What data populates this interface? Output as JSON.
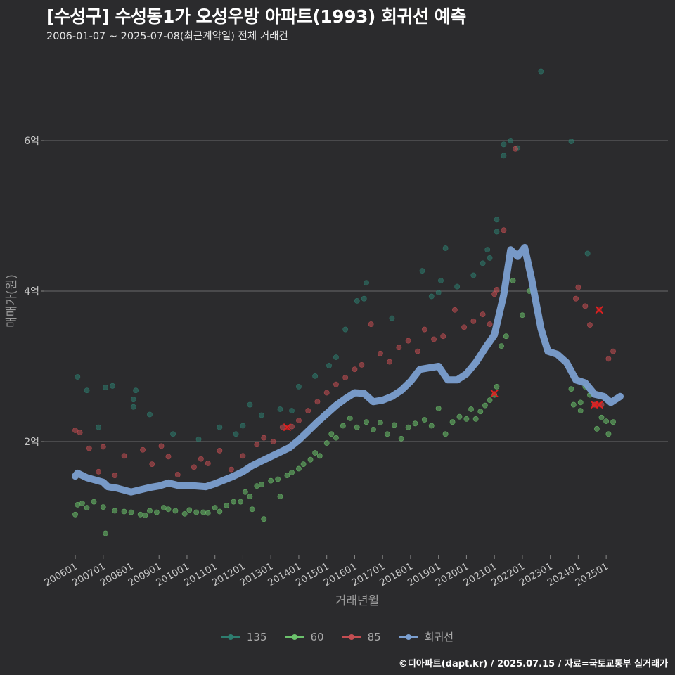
{
  "title": "[수성구] 수성동1가 오성우방 아파트(1993) 회귀선 예측",
  "subtitle": "2006-01-07 ~ 2025-07-08(최근계약일) 전체 거래건",
  "footer": "©디아파트(dapt.kr) / 2025.07.15 / 자료=국토교통부 실거래가",
  "chart_data": {
    "type": "scatter",
    "xlabel": "거래년월",
    "ylabel": "매매가(원)",
    "x_range": [
      "2006-01",
      "2025-07"
    ],
    "ylim": [
      0.8,
      7.0
    ],
    "y_unit": "억",
    "yticks": [
      2,
      4,
      6
    ],
    "ytick_labels": [
      "2억",
      "4억",
      "6억"
    ],
    "xtick_labels": [
      "200601",
      "200701",
      "200801",
      "200901",
      "201001",
      "201101",
      "201201",
      "201301",
      "201401",
      "201501",
      "201601",
      "201701",
      "201801",
      "201901",
      "202001",
      "202101",
      "202201",
      "202301",
      "202401",
      "202501"
    ],
    "grid": "horizontal",
    "legend_position": "bottom",
    "series": [
      {
        "name": "135",
        "color": "#2e7d6f",
        "points": [
          [
            "2006-02",
            2.86
          ],
          [
            "2006-06",
            2.68
          ],
          [
            "2006-11",
            2.19
          ],
          [
            "2007-02",
            2.72
          ],
          [
            "2007-05",
            2.74
          ],
          [
            "2008-02",
            2.56
          ],
          [
            "2008-02",
            2.46
          ],
          [
            "2008-03",
            2.68
          ],
          [
            "2008-09",
            2.36
          ],
          [
            "2009-07",
            2.1
          ],
          [
            "2010-06",
            2.03
          ],
          [
            "2011-03",
            2.19
          ],
          [
            "2011-10",
            2.1
          ],
          [
            "2012-01",
            2.21
          ],
          [
            "2012-04",
            2.49
          ],
          [
            "2012-09",
            2.35
          ],
          [
            "2013-05",
            2.43
          ],
          [
            "2013-10",
            2.41
          ],
          [
            "2014-01",
            2.73
          ],
          [
            "2014-08",
            2.87
          ],
          [
            "2015-02",
            3.01
          ],
          [
            "2015-05",
            3.12
          ],
          [
            "2015-09",
            3.49
          ],
          [
            "2016-02",
            3.87
          ],
          [
            "2016-05",
            3.9
          ],
          [
            "2016-06",
            4.11
          ],
          [
            "2017-05",
            3.64
          ],
          [
            "2018-06",
            4.27
          ],
          [
            "2018-10",
            3.93
          ],
          [
            "2019-01",
            3.98
          ],
          [
            "2019-02",
            4.14
          ],
          [
            "2019-04",
            4.57
          ],
          [
            "2019-09",
            4.06
          ],
          [
            "2020-04",
            4.21
          ],
          [
            "2020-08",
            4.37
          ],
          [
            "2020-10",
            4.55
          ],
          [
            "2020-11",
            4.44
          ],
          [
            "2021-02",
            4.95
          ],
          [
            "2021-02",
            4.79
          ],
          [
            "2021-05",
            5.8
          ],
          [
            "2021-05",
            5.95
          ],
          [
            "2021-08",
            6.0
          ],
          [
            "2021-11",
            5.9
          ],
          [
            "2022-09",
            6.92
          ],
          [
            "2023-10",
            5.99
          ],
          [
            "2024-05",
            4.5
          ]
        ]
      },
      {
        "name": "60",
        "color": "#6cc26c",
        "points": [
          [
            "2006-01",
            1.03
          ],
          [
            "2006-02",
            1.16
          ],
          [
            "2006-04",
            1.18
          ],
          [
            "2006-06",
            1.12
          ],
          [
            "2006-09",
            1.2
          ],
          [
            "2007-01",
            1.13
          ],
          [
            "2007-02",
            0.78
          ],
          [
            "2007-06",
            1.08
          ],
          [
            "2007-10",
            1.07
          ],
          [
            "2008-01",
            1.06
          ],
          [
            "2008-05",
            1.03
          ],
          [
            "2008-07",
            1.02
          ],
          [
            "2008-09",
            1.08
          ],
          [
            "2008-12",
            1.06
          ],
          [
            "2009-03",
            1.12
          ],
          [
            "2009-05",
            1.1
          ],
          [
            "2009-08",
            1.08
          ],
          [
            "2009-12",
            1.04
          ],
          [
            "2010-02",
            1.09
          ],
          [
            "2010-05",
            1.06
          ],
          [
            "2010-08",
            1.06
          ],
          [
            "2010-10",
            1.05
          ],
          [
            "2011-01",
            1.12
          ],
          [
            "2011-03",
            1.07
          ],
          [
            "2011-06",
            1.15
          ],
          [
            "2011-09",
            1.2
          ],
          [
            "2011-12",
            1.2
          ],
          [
            "2012-02",
            1.33
          ],
          [
            "2012-04",
            1.27
          ],
          [
            "2012-05",
            1.1
          ],
          [
            "2012-07",
            1.41
          ],
          [
            "2012-09",
            1.43
          ],
          [
            "2012-10",
            0.97
          ],
          [
            "2013-01",
            1.48
          ],
          [
            "2013-04",
            1.5
          ],
          [
            "2013-05",
            1.27
          ],
          [
            "2013-08",
            1.55
          ],
          [
            "2013-10",
            1.59
          ],
          [
            "2014-01",
            1.64
          ],
          [
            "2014-03",
            1.7
          ],
          [
            "2014-06",
            1.76
          ],
          [
            "2014-08",
            1.85
          ],
          [
            "2014-10",
            1.81
          ],
          [
            "2015-01",
            1.98
          ],
          [
            "2015-03",
            2.1
          ],
          [
            "2015-05",
            2.05
          ],
          [
            "2015-08",
            2.21
          ],
          [
            "2015-11",
            2.31
          ],
          [
            "2016-02",
            2.19
          ],
          [
            "2016-06",
            2.26
          ],
          [
            "2016-09",
            2.16
          ],
          [
            "2016-12",
            2.25
          ],
          [
            "2017-03",
            2.1
          ],
          [
            "2017-06",
            2.22
          ],
          [
            "2017-09",
            2.04
          ],
          [
            "2017-12",
            2.19
          ],
          [
            "2018-03",
            2.24
          ],
          [
            "2018-07",
            2.29
          ],
          [
            "2018-10",
            2.21
          ],
          [
            "2019-01",
            2.44
          ],
          [
            "2019-04",
            2.1
          ],
          [
            "2019-07",
            2.26
          ],
          [
            "2019-10",
            2.33
          ],
          [
            "2020-01",
            2.3
          ],
          [
            "2020-03",
            2.43
          ],
          [
            "2020-05",
            2.3
          ],
          [
            "2020-07",
            2.4
          ],
          [
            "2020-09",
            2.48
          ],
          [
            "2020-11",
            2.55
          ],
          [
            "2021-01",
            2.62
          ],
          [
            "2021-02",
            2.73
          ],
          [
            "2021-04",
            3.27
          ],
          [
            "2021-06",
            3.4
          ],
          [
            "2021-09",
            4.14
          ],
          [
            "2022-01",
            3.68
          ],
          [
            "2022-04",
            4.0
          ],
          [
            "2023-10",
            2.7
          ],
          [
            "2023-11",
            2.49
          ],
          [
            "2024-02",
            2.41
          ],
          [
            "2024-02",
            2.52
          ],
          [
            "2024-04",
            2.73
          ],
          [
            "2024-06",
            2.62
          ],
          [
            "2024-09",
            2.17
          ],
          [
            "2024-11",
            2.32
          ],
          [
            "2025-01",
            2.27
          ],
          [
            "2025-02",
            2.1
          ],
          [
            "2025-04",
            2.26
          ]
        ]
      },
      {
        "name": "85",
        "color": "#c44e52",
        "points": [
          [
            "2006-01",
            2.15
          ],
          [
            "2006-03",
            2.12
          ],
          [
            "2006-07",
            1.91
          ],
          [
            "2006-11",
            1.6
          ],
          [
            "2007-01",
            1.93
          ],
          [
            "2007-06",
            1.55
          ],
          [
            "2007-10",
            1.81
          ],
          [
            "2008-06",
            1.89
          ],
          [
            "2008-10",
            1.7
          ],
          [
            "2009-02",
            1.94
          ],
          [
            "2009-05",
            1.8
          ],
          [
            "2009-09",
            1.56
          ],
          [
            "2010-04",
            1.66
          ],
          [
            "2010-07",
            1.77
          ],
          [
            "2010-10",
            1.71
          ],
          [
            "2011-03",
            1.88
          ],
          [
            "2011-08",
            1.63
          ],
          [
            "2012-01",
            1.81
          ],
          [
            "2012-04",
            1.66
          ],
          [
            "2012-07",
            1.96
          ],
          [
            "2012-10",
            2.05
          ],
          [
            "2013-02",
            2.0
          ],
          [
            "2013-06",
            2.19
          ],
          [
            "2013-10",
            2.2
          ],
          [
            "2014-01",
            2.28
          ],
          [
            "2014-05",
            2.41
          ],
          [
            "2014-09",
            2.53
          ],
          [
            "2015-01",
            2.65
          ],
          [
            "2015-05",
            2.76
          ],
          [
            "2015-09",
            2.85
          ],
          [
            "2016-01",
            2.96
          ],
          [
            "2016-04",
            3.02
          ],
          [
            "2016-08",
            3.56
          ],
          [
            "2016-12",
            3.17
          ],
          [
            "2017-04",
            3.06
          ],
          [
            "2017-08",
            3.25
          ],
          [
            "2017-12",
            3.34
          ],
          [
            "2018-04",
            3.2
          ],
          [
            "2018-07",
            3.49
          ],
          [
            "2018-11",
            3.36
          ],
          [
            "2019-03",
            3.4
          ],
          [
            "2019-08",
            3.75
          ],
          [
            "2019-12",
            3.52
          ],
          [
            "2020-04",
            3.6
          ],
          [
            "2020-08",
            3.69
          ],
          [
            "2020-11",
            3.56
          ],
          [
            "2021-01",
            3.96
          ],
          [
            "2021-02",
            4.02
          ],
          [
            "2021-05",
            4.81
          ],
          [
            "2021-10",
            5.89
          ],
          [
            "2024-01",
            4.05
          ],
          [
            "2024-04",
            3.8
          ],
          [
            "2024-06",
            3.55
          ],
          [
            "2024-08",
            2.49
          ],
          [
            "2024-11",
            2.49
          ],
          [
            "2025-04",
            3.2
          ],
          [
            "2025-02",
            3.1
          ],
          [
            "2023-12",
            3.9
          ]
        ]
      }
    ],
    "flagged_points_color": "#e02020",
    "flagged_points": [
      [
        "2013-08",
        2.19
      ],
      [
        "2021-01",
        2.64
      ],
      [
        "2024-08",
        2.49
      ],
      [
        "2024-10",
        2.49
      ],
      [
        "2024-10",
        3.75
      ]
    ],
    "regression": {
      "name": "회귀선",
      "color": "#7b9fd0",
      "points": [
        [
          "2006-01",
          1.54
        ],
        [
          "2006-02",
          1.58
        ],
        [
          "2006-06",
          1.52
        ],
        [
          "2007-01",
          1.46
        ],
        [
          "2007-03",
          1.4
        ],
        [
          "2007-07",
          1.38
        ],
        [
          "2008-01",
          1.33
        ],
        [
          "2008-05",
          1.36
        ],
        [
          "2008-09",
          1.39
        ],
        [
          "2009-01",
          1.41
        ],
        [
          "2009-05",
          1.45
        ],
        [
          "2009-09",
          1.42
        ],
        [
          "2010-01",
          1.42
        ],
        [
          "2010-05",
          1.41
        ],
        [
          "2010-09",
          1.4
        ],
        [
          "2011-01",
          1.44
        ],
        [
          "2011-05",
          1.49
        ],
        [
          "2011-09",
          1.54
        ],
        [
          "2012-01",
          1.6
        ],
        [
          "2012-05",
          1.68
        ],
        [
          "2012-09",
          1.74
        ],
        [
          "2013-01",
          1.8
        ],
        [
          "2013-05",
          1.86
        ],
        [
          "2013-09",
          1.92
        ],
        [
          "2014-01",
          2.02
        ],
        [
          "2014-05",
          2.14
        ],
        [
          "2014-09",
          2.26
        ],
        [
          "2015-01",
          2.37
        ],
        [
          "2015-05",
          2.48
        ],
        [
          "2015-09",
          2.57
        ],
        [
          "2016-01",
          2.65
        ],
        [
          "2016-05",
          2.64
        ],
        [
          "2016-09",
          2.53
        ],
        [
          "2017-01",
          2.55
        ],
        [
          "2017-05",
          2.6
        ],
        [
          "2017-09",
          2.68
        ],
        [
          "2018-01",
          2.8
        ],
        [
          "2018-05",
          2.96
        ],
        [
          "2018-09",
          2.98
        ],
        [
          "2019-01",
          3.0
        ],
        [
          "2019-05",
          2.82
        ],
        [
          "2019-09",
          2.82
        ],
        [
          "2020-01",
          2.9
        ],
        [
          "2020-05",
          3.05
        ],
        [
          "2020-09",
          3.24
        ],
        [
          "2021-01",
          3.42
        ],
        [
          "2021-05",
          3.95
        ],
        [
          "2021-08",
          4.55
        ],
        [
          "2021-11",
          4.46
        ],
        [
          "2022-02",
          4.58
        ],
        [
          "2022-05",
          4.16
        ],
        [
          "2022-09",
          3.5
        ],
        [
          "2022-12",
          3.2
        ],
        [
          "2023-04",
          3.16
        ],
        [
          "2023-08",
          3.05
        ],
        [
          "2023-12",
          2.82
        ],
        [
          "2024-04",
          2.78
        ],
        [
          "2024-08",
          2.63
        ],
        [
          "2024-12",
          2.6
        ],
        [
          "2025-03",
          2.52
        ],
        [
          "2025-07",
          2.6
        ]
      ]
    }
  }
}
